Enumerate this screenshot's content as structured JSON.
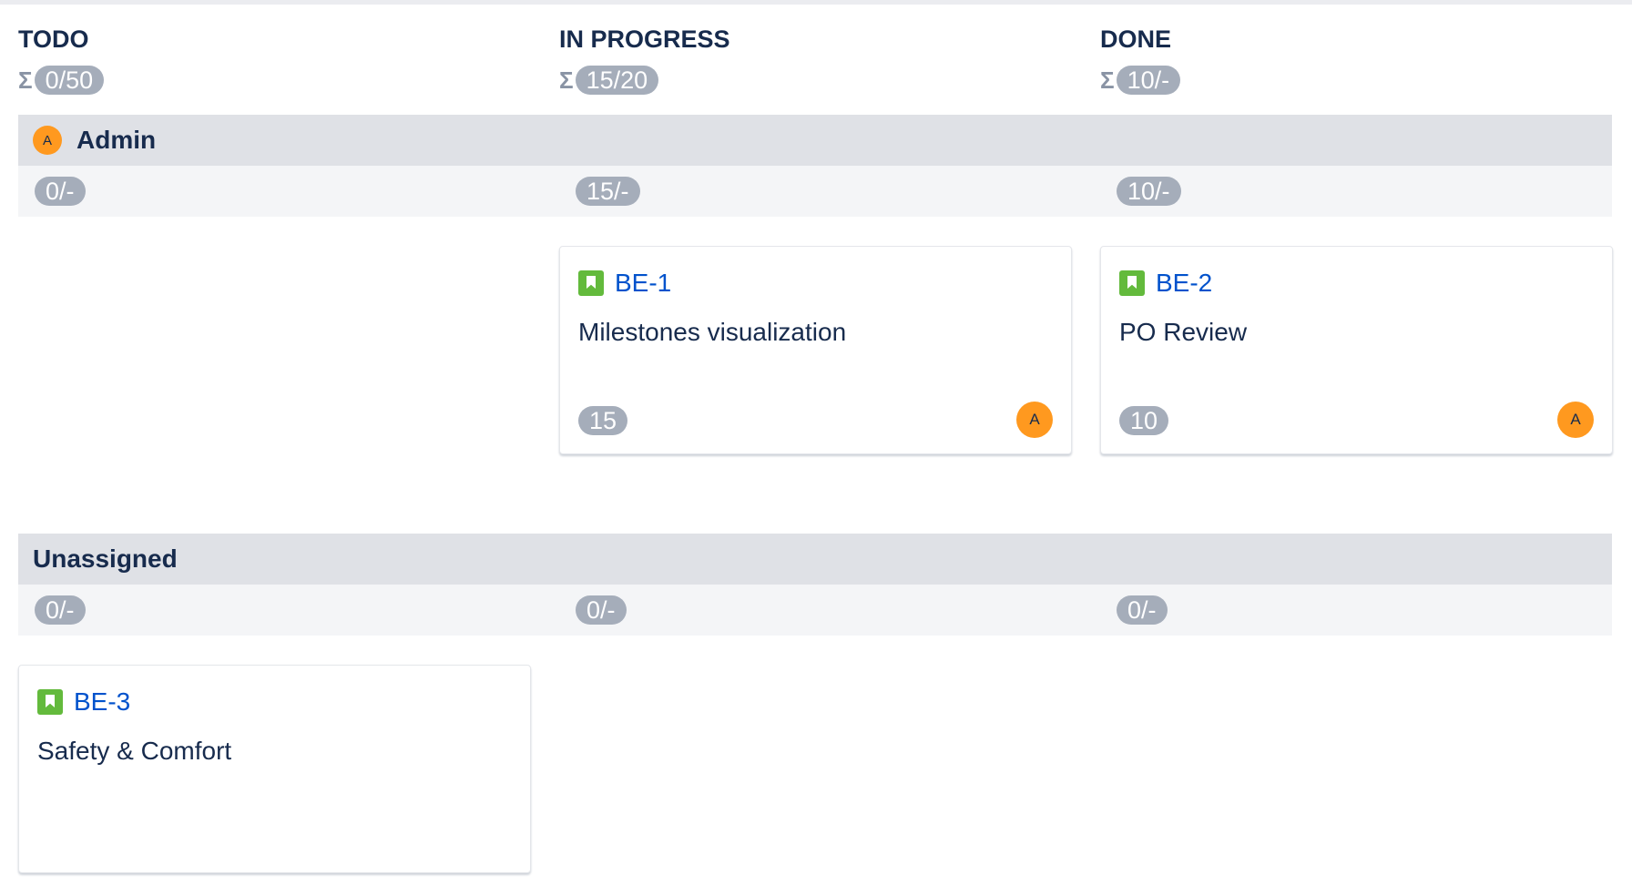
{
  "columns": [
    {
      "title": "TODO",
      "sum": "0/50"
    },
    {
      "title": "IN PROGRESS",
      "sum": "15/20"
    },
    {
      "title": "DONE",
      "sum": "10/-"
    }
  ],
  "sigma": "Σ",
  "swimlanes": [
    {
      "name": "Admin",
      "avatar": "A",
      "counts": [
        "0/-",
        "15/-",
        "10/-"
      ]
    },
    {
      "name": "Unassigned",
      "counts": [
        "0/-",
        "0/-",
        "0/-"
      ]
    }
  ],
  "cards": [
    {
      "key": "BE-1",
      "summary": "Milestones visualization",
      "points": "15",
      "avatar": "A",
      "type_icon": "story-icon"
    },
    {
      "key": "BE-2",
      "summary": "PO Review",
      "points": "10",
      "avatar": "A",
      "type_icon": "story-icon"
    },
    {
      "key": "BE-3",
      "summary": "Safety & Comfort",
      "type_icon": "story-icon"
    }
  ],
  "colors": {
    "avatar": "#ff991f",
    "story": "#63ba3c",
    "link": "#0052cc",
    "pill": "#a5adba"
  }
}
